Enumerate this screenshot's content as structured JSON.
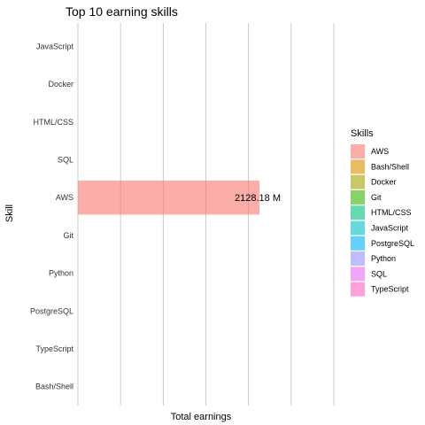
{
  "chart_data": {
    "type": "bar",
    "orientation": "horizontal",
    "title": "Top 10 earning skills",
    "xlabel": "Total earnings",
    "ylabel": "Skill",
    "categories": [
      "JavaScript",
      "Docker",
      "HTML/CSS",
      "SQL",
      "AWS",
      "Git",
      "Python",
      "PostgreSQL",
      "TypeScript",
      "Bash/Shell"
    ],
    "values": [
      null,
      null,
      null,
      null,
      2128.18,
      null,
      null,
      null,
      null,
      null
    ],
    "value_unit": "M",
    "data_labels": [
      {
        "category": "AWS",
        "text": "2128.18 M"
      }
    ],
    "xlim": [
      0,
      2900
    ],
    "x_gridlines": [
      0,
      500,
      1000,
      1500,
      2000,
      2500,
      3000
    ],
    "grid": true,
    "legend": {
      "title": "Skills",
      "position": "right",
      "entries": [
        {
          "label": "AWS",
          "color": "#F8766D"
        },
        {
          "label": "Bash/Shell",
          "color": "#D89000"
        },
        {
          "label": "Docker",
          "color": "#A3A500"
        },
        {
          "label": "Git",
          "color": "#39B600"
        },
        {
          "label": "HTML/CSS",
          "color": "#00BF7D"
        },
        {
          "label": "JavaScript",
          "color": "#00BFC4"
        },
        {
          "label": "PostgreSQL",
          "color": "#00B0F6"
        },
        {
          "label": "Python",
          "color": "#9590FF"
        },
        {
          "label": "SQL",
          "color": "#E76BF3"
        },
        {
          "label": "TypeScript",
          "color": "#FF62BC"
        }
      ]
    },
    "bar_color": "#F8766D",
    "bar_opacity": 0.6
  }
}
